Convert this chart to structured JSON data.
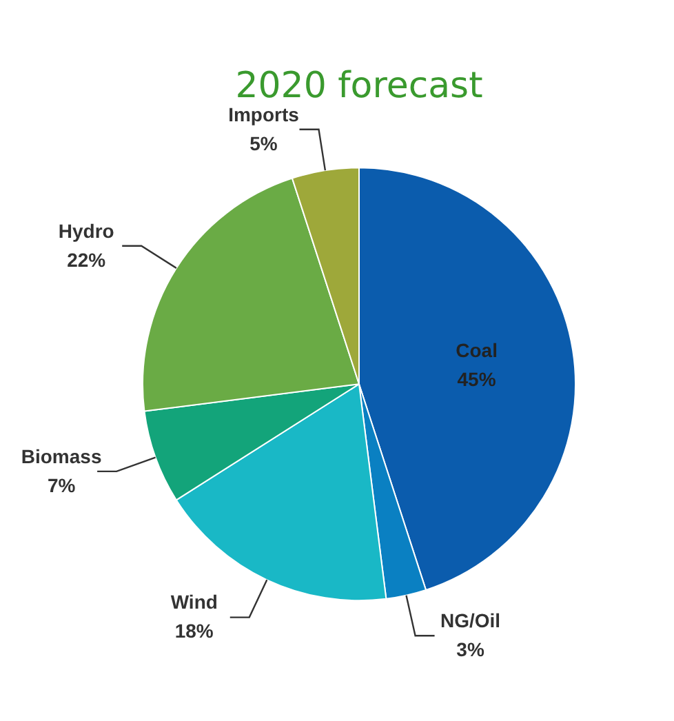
{
  "chart_data": {
    "type": "pie",
    "title": "2020 forecast",
    "categories": [
      "Coal",
      "NG/Oil",
      "Wind",
      "Biomass",
      "Hydro",
      "Imports"
    ],
    "values": [
      45,
      3,
      18,
      7,
      22,
      5
    ],
    "value_labels": [
      "45%",
      "3%",
      "18%",
      "7%",
      "22%",
      "5%"
    ],
    "colors": [
      "#0b5cad",
      "#0a80c2",
      "#19b8c6",
      "#13a47a",
      "#6aab45",
      "#9ea83a"
    ],
    "legend": false
  }
}
